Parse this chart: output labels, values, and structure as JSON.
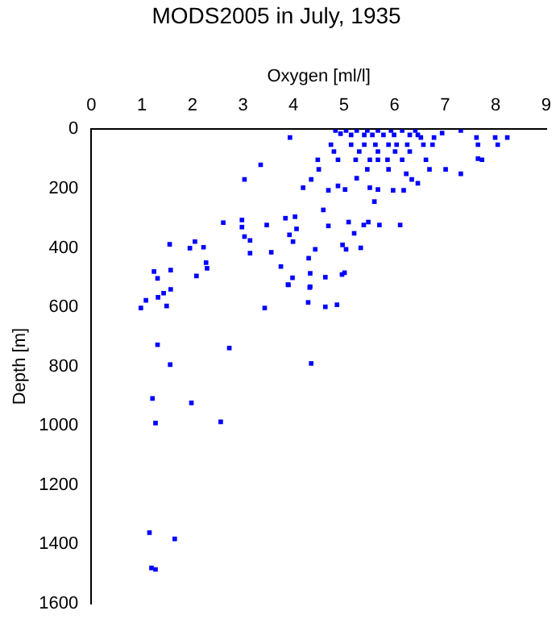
{
  "chart_data": {
    "type": "scatter",
    "title": "MODS2005 in July, 1935",
    "xlabel": "Oxygen [ml/l]",
    "ylabel": "Depth [m]",
    "xlim": [
      0,
      9
    ],
    "xticks": [
      0,
      1,
      2,
      3,
      4,
      5,
      6,
      7,
      8,
      9
    ],
    "ylim": [
      1600,
      0
    ],
    "yticks": [
      0,
      200,
      400,
      600,
      800,
      1000,
      1200,
      1400,
      1600
    ],
    "grid": false,
    "legend": false,
    "marker": "square",
    "series": [
      {
        "color": "#0000ff",
        "x": [
          3.93,
          4.83,
          4.93,
          5.04,
          5.14,
          5.25,
          5.4,
          5.46,
          5.56,
          5.67,
          5.78,
          5.93,
          5.99,
          6.15,
          6.3,
          6.41,
          6.46,
          6.52,
          6.78,
          6.94,
          7.31,
          7.62,
          7.65,
          7.99,
          8.04,
          8.23,
          7.65,
          7.73,
          4.74,
          5.14,
          5.4,
          5.62,
          5.88,
          6.04,
          6.25,
          6.57,
          6.75,
          4.8,
          5.3,
          5.67,
          6.01,
          6.3,
          4.48,
          4.88,
          5.23,
          5.51,
          5.67,
          5.86,
          6.15,
          6.62,
          4.5,
          5.46,
          5.88,
          6.69,
          7.01,
          7.31,
          3.35,
          3.03,
          5.25,
          6.23,
          6.46,
          6.34,
          4.35,
          4.19,
          4.69,
          4.88,
          5.02,
          5.51,
          5.67,
          5.97,
          6.18,
          5.6,
          4.59,
          4.03,
          3.84,
          2.98,
          2.61,
          3.47,
          2.98,
          4.06,
          4.69,
          5.09,
          5.39,
          5.48,
          5.7,
          6.11,
          3.92,
          5.2,
          3.03,
          3.14,
          3.14,
          3.99,
          4.43,
          4.97,
          5.04,
          5.33,
          3.56,
          1.55,
          2.05,
          1.95,
          2.22,
          4.3,
          3.75,
          4.33,
          4.63,
          4.96,
          5.01,
          3.98,
          3.9,
          4.33,
          1.24,
          1.31,
          1.57,
          2.27,
          2.29,
          2.08,
          1.57,
          1.43,
          0.98,
          1.08,
          1.32,
          1.49,
          3.43,
          3.89,
          4.29,
          4.63,
          4.86,
          4.32,
          1.31,
          1.56,
          2.73,
          4.35,
          1.21,
          1.98,
          1.27,
          2.56,
          1.15,
          1.65,
          1.19,
          1.27
        ],
        "values": [
          28,
          4,
          15,
          4,
          19,
          4,
          19,
          4,
          19,
          4,
          19,
          4,
          19,
          4,
          19,
          4,
          19,
          28,
          28,
          13,
          4,
          28,
          52,
          28,
          52,
          28,
          99,
          103,
          52,
          52,
          52,
          52,
          52,
          52,
          52,
          52,
          52,
          75,
          75,
          75,
          75,
          75,
          103,
          103,
          103,
          103,
          103,
          103,
          103,
          103,
          135,
          135,
          135,
          135,
          135,
          150,
          120,
          169,
          165,
          150,
          182,
          169,
          169,
          197,
          206,
          191,
          203,
          197,
          203,
          206,
          206,
          244,
          272,
          295,
          300,
          306,
          315,
          323,
          330,
          336,
          326,
          313,
          323,
          313,
          323,
          323,
          356,
          351,
          362,
          375,
          418,
          379,
          405,
          390,
          405,
          400,
          415,
          388,
          379,
          401,
          398,
          435,
          463,
          486,
          499,
          490,
          484,
          501,
          525,
          531,
          480,
          503,
          475,
          450,
          469,
          495,
          540,
          553,
          603,
          577,
          567,
          596,
          603,
          524,
          584,
          599,
          592,
          534,
          727,
          794,
          738,
          790,
          908,
          923,
          991,
          987,
          1361,
          1382,
          1480,
          1485
        ]
      }
    ]
  }
}
